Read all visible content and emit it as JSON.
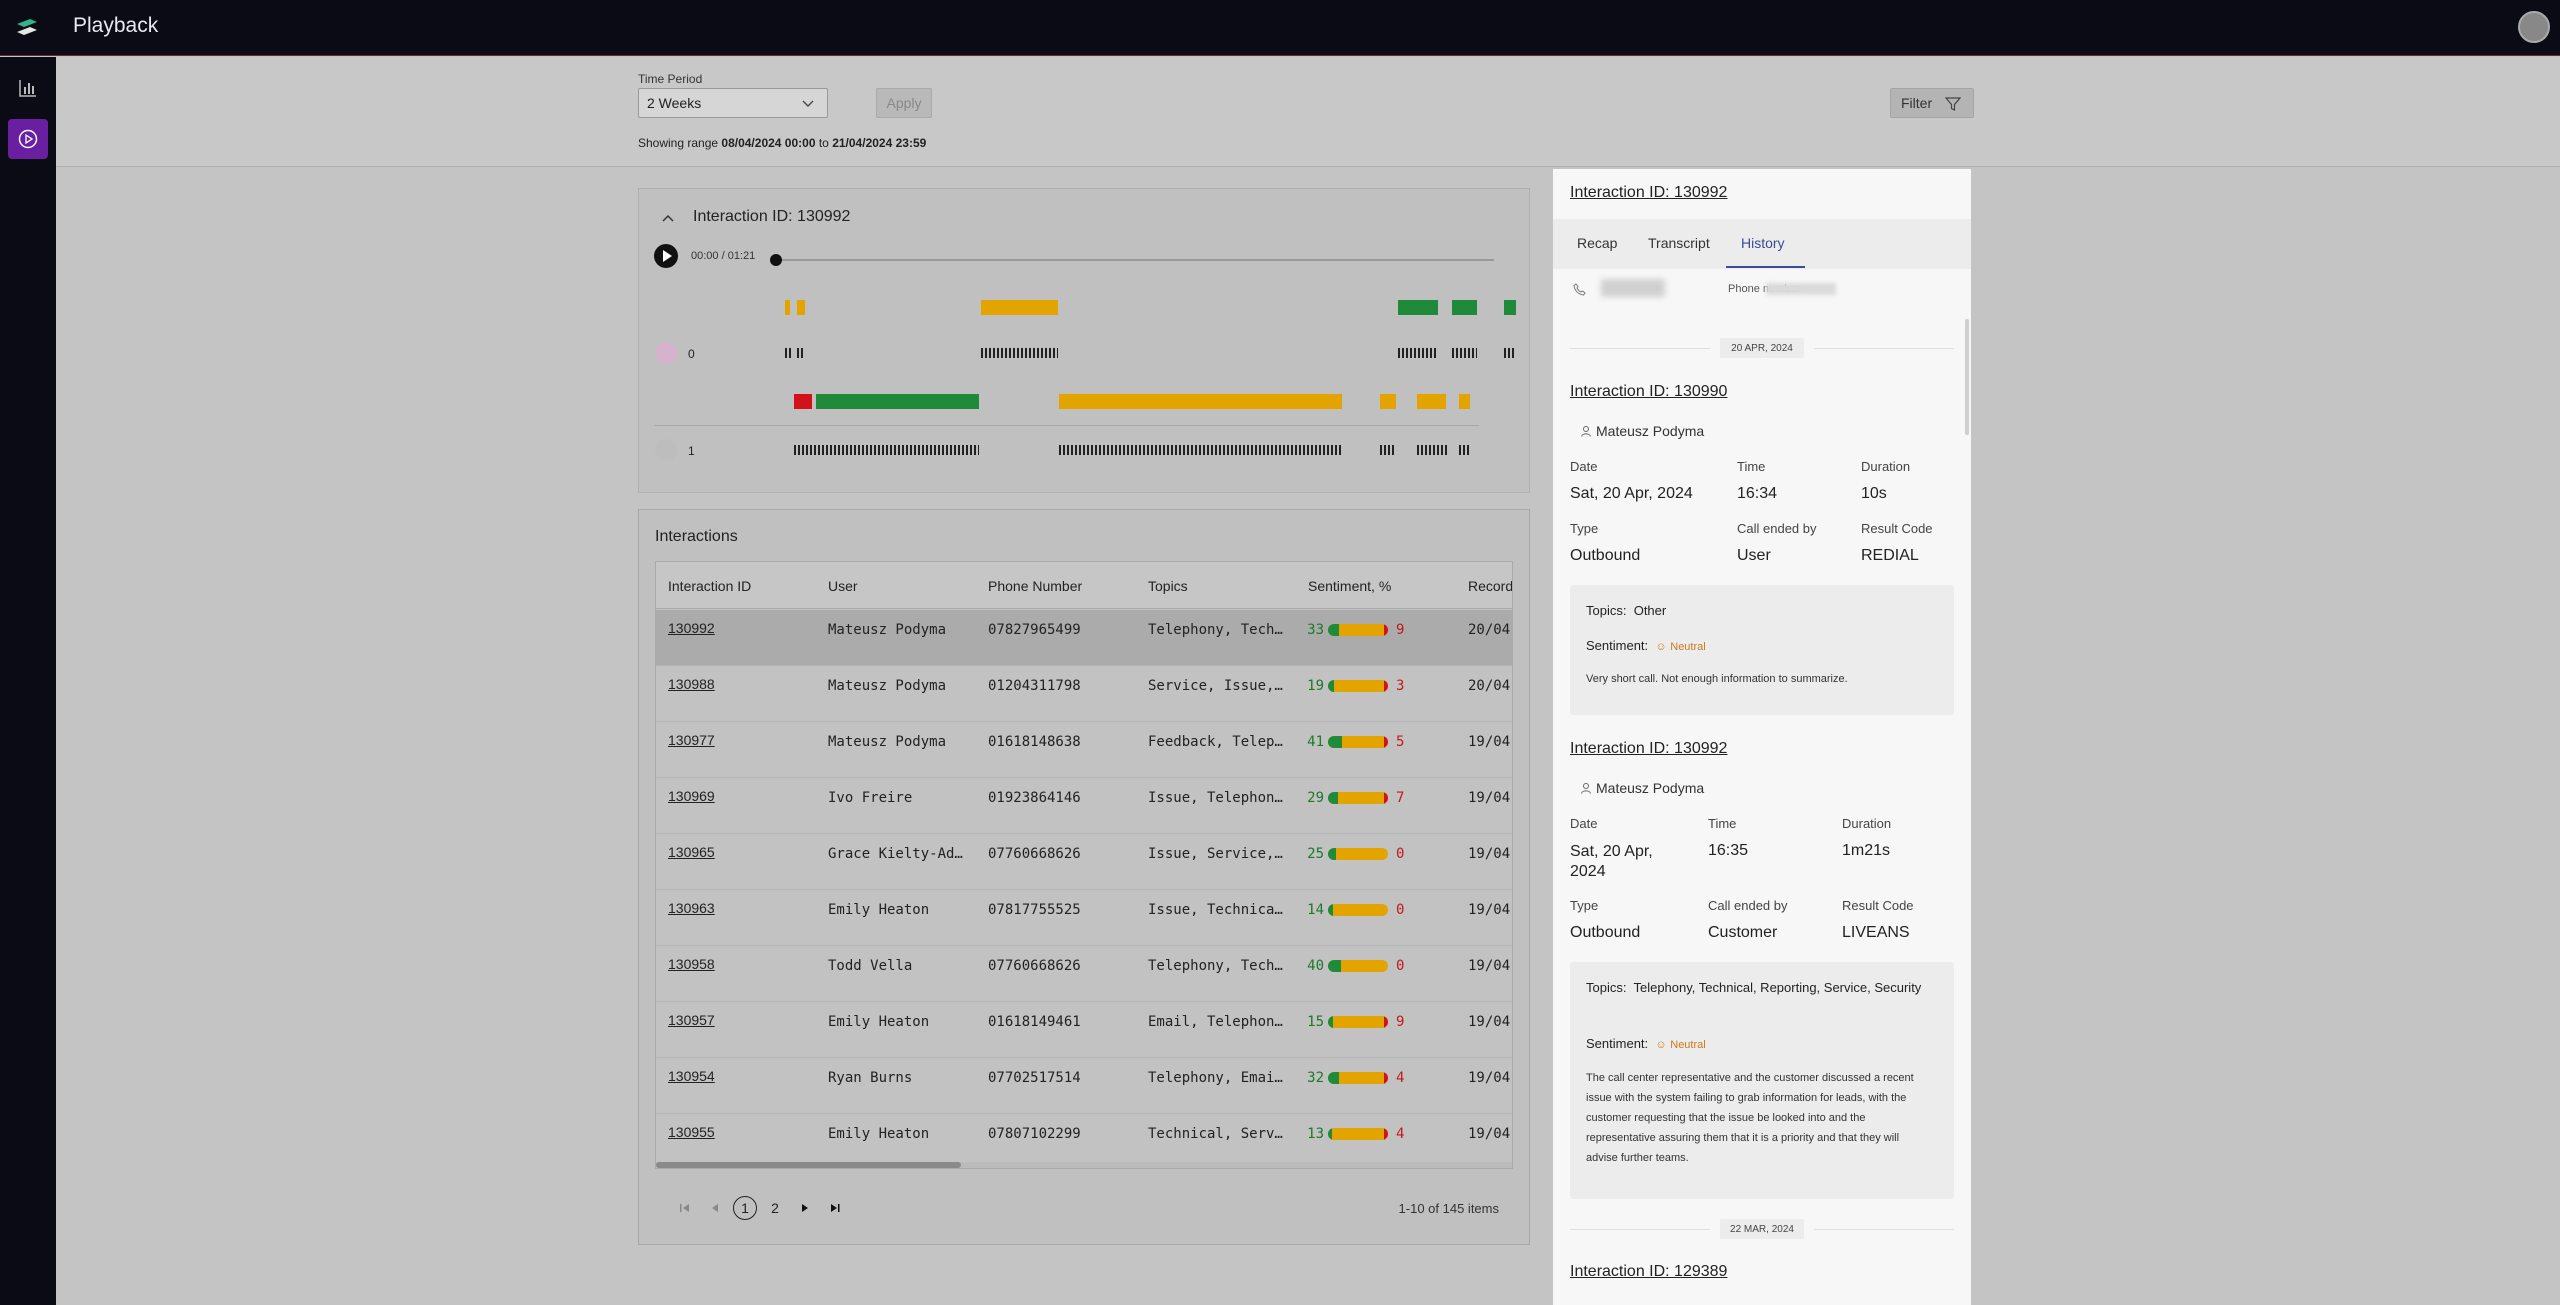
{
  "app": {
    "title": "Playback"
  },
  "toolbar": {
    "time_period_label": "Time Period",
    "time_period_value": "2 Weeks",
    "apply_label": "Apply",
    "filter_label": "Filter",
    "range_prefix": "Showing range",
    "range_start": "08/04/2024 00:00",
    "range_to": "to",
    "range_end": "21/04/2024 23:59"
  },
  "player": {
    "title": "Interaction ID: 130992",
    "time": "00:00 / 01:21",
    "speakers": [
      {
        "label": "0"
      },
      {
        "label": "1"
      }
    ],
    "colors": {
      "neutral": "#e3a400",
      "positive": "#1e8a3a",
      "negative": "#d1121a"
    }
  },
  "interactions": {
    "title": "Interactions",
    "columns": [
      "Interaction ID",
      "User",
      "Phone Number",
      "Topics",
      "Sentiment, %",
      "Record"
    ],
    "rows": [
      {
        "id": "130992",
        "user": "Mateusz Podyma",
        "phone": "07827965499",
        "topics": "Telephony, Tech…",
        "pos": "33",
        "neg": "9",
        "record": "20/04",
        "pos_frac": 0.33,
        "neg_frac": 0.09
      },
      {
        "id": "130988",
        "user": "Mateusz Podyma",
        "phone": "01204311798",
        "topics": "Service, Issue,…",
        "pos": "19",
        "neg": "3",
        "record": "20/04",
        "pos_frac": 0.19,
        "neg_frac": 0.03
      },
      {
        "id": "130977",
        "user": "Mateusz Podyma",
        "phone": "01618148638",
        "topics": "Feedback, Telep…",
        "pos": "41",
        "neg": "5",
        "record": "19/04",
        "pos_frac": 0.41,
        "neg_frac": 0.05
      },
      {
        "id": "130969",
        "user": "Ivo Freire",
        "phone": "01923864146",
        "topics": "Issue, Telephon…",
        "pos": "29",
        "neg": "7",
        "record": "19/04",
        "pos_frac": 0.29,
        "neg_frac": 0.07
      },
      {
        "id": "130965",
        "user": "Grace Kielty-Ad…",
        "phone": "07760668626",
        "topics": "Issue, Service,…",
        "pos": "25",
        "neg": "0",
        "record": "19/04",
        "pos_frac": 0.25,
        "neg_frac": 0
      },
      {
        "id": "130963",
        "user": "Emily Heaton",
        "phone": "07817755525",
        "topics": "Issue, Technica…",
        "pos": "14",
        "neg": "0",
        "record": "19/04",
        "pos_frac": 0.14,
        "neg_frac": 0
      },
      {
        "id": "130958",
        "user": "Todd Vella",
        "phone": "07760668626",
        "topics": "Telephony, Tech…",
        "pos": "40",
        "neg": "0",
        "record": "19/04",
        "pos_frac": 0.4,
        "neg_frac": 0
      },
      {
        "id": "130957",
        "user": "Emily Heaton",
        "phone": "01618149461",
        "topics": "Email, Telephon…",
        "pos": "15",
        "neg": "9",
        "record": "19/04",
        "pos_frac": 0.15,
        "neg_frac": 0.09
      },
      {
        "id": "130954",
        "user": "Ryan Burns",
        "phone": "07702517514",
        "topics": "Telephony, Emai…",
        "pos": "32",
        "neg": "4",
        "record": "19/04",
        "pos_frac": 0.32,
        "neg_frac": 0.04
      },
      {
        "id": "130955",
        "user": "Emily Heaton",
        "phone": "07807102299",
        "topics": "Technical, Serv…",
        "pos": "13",
        "neg": "4",
        "record": "19/04",
        "pos_frac": 0.13,
        "neg_frac": 0.04
      }
    ],
    "pager": {
      "pages": [
        "1",
        "2"
      ],
      "count": "1-10 of 145 items"
    }
  },
  "side": {
    "title": "Interaction ID: 130992",
    "tabs": [
      "Recap",
      "Transcript",
      "History"
    ],
    "phone_label": "Phone number:",
    "history": [
      {
        "date_sep": "20 APR, 2024",
        "id": "Interaction ID: 130990",
        "user": "Mateusz Podyma",
        "labels": {
          "date": "Date",
          "time": "Time",
          "duration": "Duration",
          "type": "Type",
          "ended": "Call ended by",
          "result": "Result Code"
        },
        "date": "Sat, 20 Apr, 2024",
        "time": "16:34",
        "duration": "10s",
        "type": "Outbound",
        "ended": "User",
        "result": "REDIAL",
        "topics_label": "Topics:",
        "topics": "Other",
        "sentiment_label": "Sentiment:",
        "sentiment": "Neutral",
        "summary": "Very short call. Not enough information to summarize."
      },
      {
        "id": "Interaction ID: 130992",
        "user": "Mateusz Podyma",
        "labels": {
          "date": "Date",
          "time": "Time",
          "duration": "Duration",
          "type": "Type",
          "ended": "Call ended by",
          "result": "Result Code"
        },
        "date": "Sat, 20 Apr, 2024",
        "time": "16:35",
        "duration": "1m21s",
        "type": "Outbound",
        "ended": "Customer",
        "result": "LIVEANS",
        "topics_label": "Topics:",
        "topics": "Telephony, Technical, Reporting, Service, Security",
        "sentiment_label": "Sentiment:",
        "sentiment": "Neutral",
        "summary": "The call center representative and the customer discussed a recent issue with the system failing to grab information for leads, with the customer requesting that the issue be looked into and the representative assuring them that it is a priority and that they will advise further teams."
      },
      {
        "date_sep": "22 MAR, 2024",
        "id": "Interaction ID: 129389"
      }
    ]
  }
}
